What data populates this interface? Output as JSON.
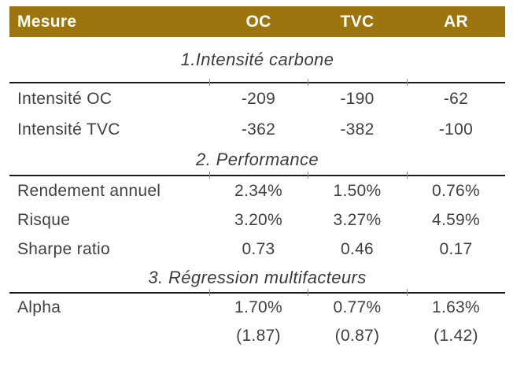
{
  "colors": {
    "header_bg": "#9c750f",
    "header_text": "#ffffff",
    "body_text": "#3f4043",
    "rule": "#1a1a1a"
  },
  "table": {
    "columns": [
      "Mesure",
      "OC",
      "TVC",
      "AR"
    ],
    "sections": [
      {
        "title": "1.Intensité carbone",
        "rows": [
          {
            "label": "Intensité OC",
            "values": [
              "-209",
              "-190",
              "-62"
            ]
          },
          {
            "label": "Intensité TVC",
            "values": [
              "-362",
              "-382",
              "-100"
            ]
          }
        ]
      },
      {
        "title": "2. Performance",
        "rows": [
          {
            "label": "Rendement annuel",
            "values": [
              "2.34%",
              "1.50%",
              "0.76%"
            ]
          },
          {
            "label": "Risque",
            "values": [
              "3.20%",
              "3.27%",
              "4.59%"
            ]
          },
          {
            "label": "Sharpe ratio",
            "values": [
              "0.73",
              "0.46",
              "0.17"
            ]
          }
        ]
      },
      {
        "title": "3. Régression multifacteurs",
        "rows": [
          {
            "label": "Alpha",
            "values": [
              "1.70%",
              "0.77%",
              "1.63%"
            ]
          },
          {
            "label": "",
            "values": [
              "(1.87)",
              "(0.87)",
              "(1.42)"
            ]
          }
        ]
      }
    ]
  }
}
